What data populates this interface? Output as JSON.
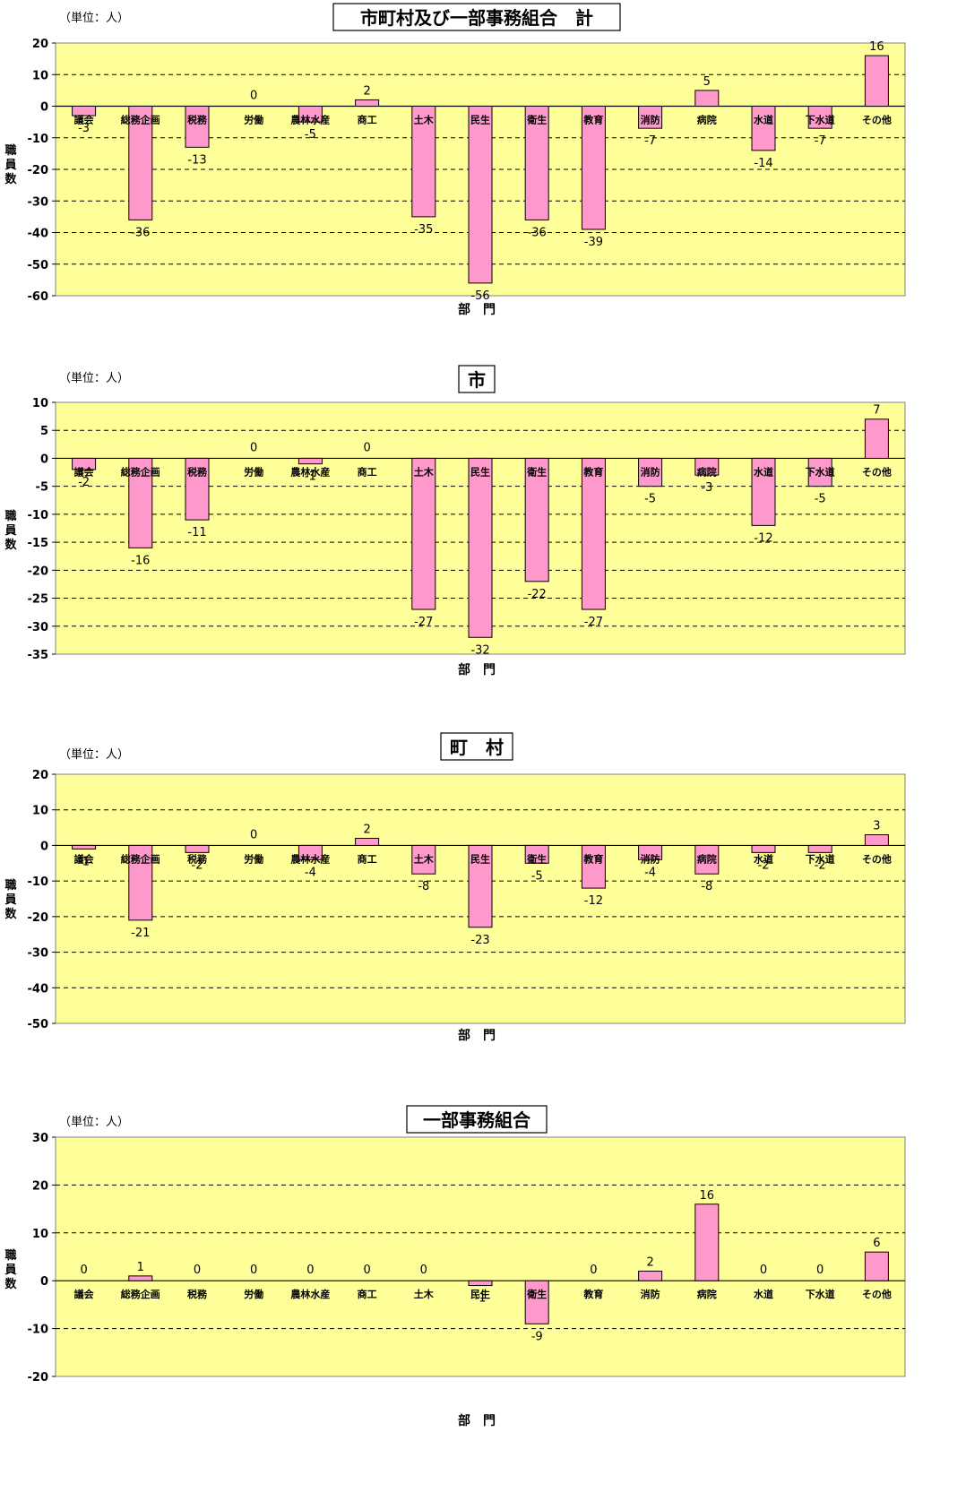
{
  "chart_data": [
    {
      "type": "bar",
      "title": "市町村及び一部事務組合　計",
      "unit": "（単位：人）",
      "xlabel": "部　門",
      "ylabel": "職員数",
      "ylim": [
        -60,
        20
      ],
      "yticks": [
        20,
        10,
        0,
        -10,
        -20,
        -30,
        -40,
        -50,
        -60
      ],
      "categories": [
        "議会",
        "総務企画",
        "税務",
        "労働",
        "農林水産",
        "商工",
        "土木",
        "民生",
        "衛生",
        "教育",
        "消防",
        "病院",
        "水道",
        "下水道",
        "その他"
      ],
      "values": [
        -3,
        -36,
        -13,
        0,
        -5,
        2,
        -35,
        -56,
        -36,
        -39,
        -7,
        5,
        -14,
        -7,
        16
      ],
      "colors": {
        "bar": "#ff99cc",
        "bar_border": "#000000",
        "plot_bg": "#ffff99"
      }
    },
    {
      "type": "bar",
      "title": "市",
      "unit": "（単位：人）",
      "xlabel": "部　門",
      "ylabel": "職員数",
      "ylim": [
        -35,
        10
      ],
      "yticks": [
        10,
        5,
        0,
        -5,
        -10,
        -15,
        -20,
        -25,
        -30,
        -35
      ],
      "categories": [
        "議会",
        "総務企画",
        "税務",
        "労働",
        "農林水産",
        "商工",
        "土木",
        "民生",
        "衛生",
        "教育",
        "消防",
        "病院",
        "水道",
        "下水道",
        "その他"
      ],
      "values": [
        -2,
        -16,
        -11,
        0,
        -1,
        0,
        -27,
        -32,
        -22,
        -27,
        -5,
        -3,
        -12,
        -5,
        7
      ],
      "colors": {
        "bar": "#ff99cc",
        "bar_border": "#000000",
        "plot_bg": "#ffff99"
      }
    },
    {
      "type": "bar",
      "title": "町　村",
      "unit": "（単位：人）",
      "xlabel": "部　門",
      "ylabel": "職員数",
      "ylim": [
        -50,
        20
      ],
      "yticks": [
        20,
        10,
        0,
        -10,
        -20,
        -30,
        -40,
        -50
      ],
      "categories": [
        "議会",
        "総務企画",
        "税務",
        "労働",
        "農林水産",
        "商工",
        "土木",
        "民生",
        "衛生",
        "教育",
        "消防",
        "病院",
        "水道",
        "下水道",
        "その他"
      ],
      "values": [
        -1,
        -21,
        -2,
        0,
        -4,
        2,
        -8,
        -23,
        -5,
        -12,
        -4,
        -8,
        -2,
        -2,
        3
      ],
      "colors": {
        "bar": "#ff99cc",
        "bar_border": "#000000",
        "plot_bg": "#ffff99"
      }
    },
    {
      "type": "bar",
      "title": "一部事務組合",
      "unit": "（単位：人）",
      "xlabel": "部　門",
      "ylabel": "職員数",
      "ylim": [
        -20,
        30
      ],
      "yticks": [
        30,
        20,
        10,
        0,
        -10,
        -20
      ],
      "categories": [
        "議会",
        "総務企画",
        "税務",
        "労働",
        "農林水産",
        "商工",
        "土木",
        "民生",
        "衛生",
        "教育",
        "消防",
        "病院",
        "水道",
        "下水道",
        "その他"
      ],
      "values": [
        0,
        1,
        0,
        0,
        0,
        0,
        0,
        -1,
        -9,
        0,
        2,
        16,
        0,
        0,
        6
      ],
      "colors": {
        "bar": "#ff99cc",
        "bar_border": "#000000",
        "plot_bg": "#ffff99"
      }
    }
  ]
}
